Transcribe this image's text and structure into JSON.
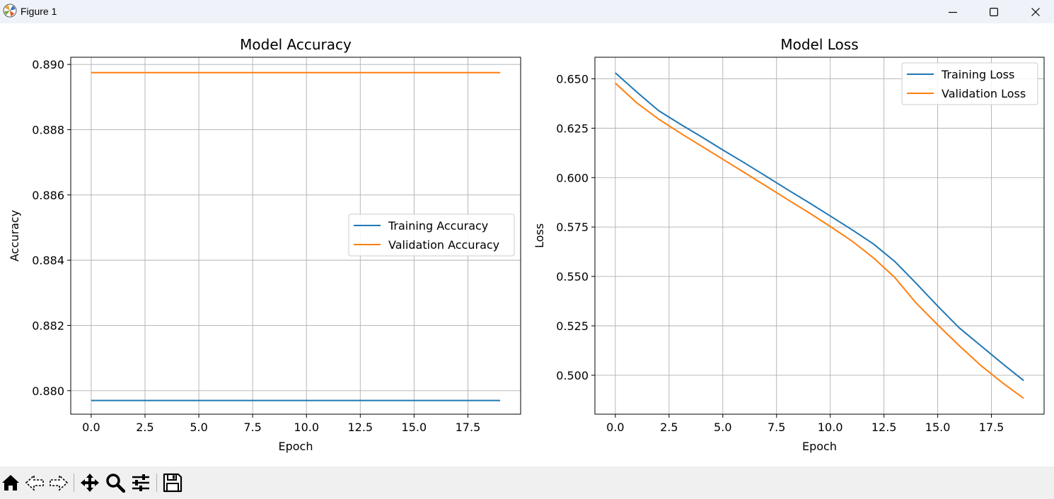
{
  "window": {
    "title": "Figure 1"
  },
  "chart_data": [
    {
      "type": "line",
      "title": "Model Accuracy",
      "xlabel": "Epoch",
      "ylabel": "Accuracy",
      "xlim": [
        -0.95,
        19.95
      ],
      "ylim": [
        0.87928,
        0.89022
      ],
      "xticks": [
        0.0,
        2.5,
        5.0,
        7.5,
        10.0,
        12.5,
        15.0,
        17.5
      ],
      "xtick_labels": [
        "0.0",
        "2.5",
        "5.0",
        "7.5",
        "10.0",
        "12.5",
        "15.0",
        "17.5"
      ],
      "yticks": [
        0.88,
        0.882,
        0.884,
        0.886,
        0.888,
        0.89
      ],
      "ytick_labels": [
        "0.880",
        "0.882",
        "0.884",
        "0.886",
        "0.888",
        "0.890"
      ],
      "grid": true,
      "legend_position": "center-right",
      "x": [
        0,
        1,
        2,
        3,
        4,
        5,
        6,
        7,
        8,
        9,
        10,
        11,
        12,
        13,
        14,
        15,
        16,
        17,
        18,
        19
      ],
      "series": [
        {
          "name": "Training Accuracy",
          "color": "#1f77b4",
          "values": [
            0.8797,
            0.8797,
            0.8797,
            0.8797,
            0.8797,
            0.8797,
            0.8797,
            0.8797,
            0.8797,
            0.8797,
            0.8797,
            0.8797,
            0.8797,
            0.8797,
            0.8797,
            0.8797,
            0.8797,
            0.8797,
            0.8797,
            0.8797
          ]
        },
        {
          "name": "Validation Accuracy",
          "color": "#ff7f0e",
          "values": [
            0.88975,
            0.88975,
            0.88975,
            0.88975,
            0.88975,
            0.88975,
            0.88975,
            0.88975,
            0.88975,
            0.88975,
            0.88975,
            0.88975,
            0.88975,
            0.88975,
            0.88975,
            0.88975,
            0.88975,
            0.88975,
            0.88975,
            0.88975
          ]
        }
      ]
    },
    {
      "type": "line",
      "title": "Model Loss",
      "xlabel": "Epoch",
      "ylabel": "Loss",
      "xlim": [
        -0.95,
        19.95
      ],
      "ylim": [
        0.4803,
        0.6609
      ],
      "xticks": [
        0.0,
        2.5,
        5.0,
        7.5,
        10.0,
        12.5,
        15.0,
        17.5
      ],
      "xtick_labels": [
        "0.0",
        "2.5",
        "5.0",
        "7.5",
        "10.0",
        "12.5",
        "15.0",
        "17.5"
      ],
      "yticks": [
        0.5,
        0.525,
        0.55,
        0.575,
        0.6,
        0.625,
        0.65
      ],
      "ytick_labels": [
        "0.500",
        "0.525",
        "0.550",
        "0.575",
        "0.600",
        "0.625",
        "0.650"
      ],
      "grid": true,
      "legend_position": "upper-right",
      "x": [
        0,
        1,
        2,
        3,
        4,
        5,
        6,
        7,
        8,
        9,
        10,
        11,
        12,
        13,
        14,
        15,
        16,
        17,
        18,
        19
      ],
      "series": [
        {
          "name": "Training Loss",
          "color": "#1f77b4",
          "values": [
            0.653,
            0.6433,
            0.634,
            0.6272,
            0.6207,
            0.614,
            0.6075,
            0.6008,
            0.594,
            0.5874,
            0.5806,
            0.5737,
            0.5665,
            0.5576,
            0.5465,
            0.535,
            0.524,
            0.515,
            0.506,
            0.4973
          ]
        },
        {
          "name": "Validation Loss",
          "color": "#ff7f0e",
          "values": [
            0.6478,
            0.6378,
            0.6297,
            0.6227,
            0.616,
            0.6093,
            0.6026,
            0.5958,
            0.589,
            0.5823,
            0.5753,
            0.568,
            0.5595,
            0.5495,
            0.5365,
            0.5255,
            0.515,
            0.505,
            0.4963,
            0.4883
          ]
        }
      ]
    }
  ],
  "toolbar": {
    "buttons": [
      {
        "name": "home-icon",
        "icon": "home"
      },
      {
        "name": "back-icon",
        "icon": "arrow-left"
      },
      {
        "name": "forward-icon",
        "icon": "arrow-right"
      },
      {
        "name": "pan-icon",
        "icon": "move"
      },
      {
        "name": "zoom-icon",
        "icon": "magnifier"
      },
      {
        "name": "configure-subplots-icon",
        "icon": "sliders"
      },
      {
        "name": "save-icon",
        "icon": "floppy-disk"
      }
    ]
  }
}
